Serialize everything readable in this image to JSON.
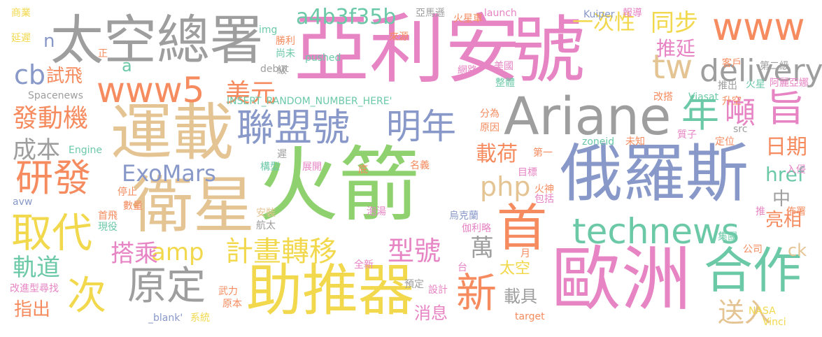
{
  "palette": {
    "green": "#8fd16f",
    "pink": "#e784c4",
    "blue": "#8898c9",
    "gray": "#9e9e9e",
    "tan": "#e5c494",
    "orange": "#f58b5f",
    "yellow": "#f2d84c",
    "teal": "#6cc9a8"
  },
  "words": [
    {
      "text": "火箭",
      "color": "green"
    },
    {
      "text": "亞利安",
      "color": "pink"
    },
    {
      "text": "號",
      "color": "pink"
    },
    {
      "text": "俄羅斯",
      "color": "blue"
    },
    {
      "text": "歐洲",
      "color": "pink"
    },
    {
      "text": "Ariane",
      "color": "gray"
    },
    {
      "text": "運載",
      "color": "tan"
    },
    {
      "text": "衛星",
      "color": "tan"
    },
    {
      "text": "太空總署",
      "color": "gray"
    },
    {
      "text": "助推器",
      "color": "yellow"
    },
    {
      "text": "technews",
      "color": "teal"
    },
    {
      "text": "合作",
      "color": "teal"
    },
    {
      "text": "www5",
      "color": "orange"
    },
    {
      "text": "www",
      "color": "orange"
    },
    {
      "text": "聯盟號",
      "color": "blue"
    },
    {
      "text": "首",
      "color": "orange"
    },
    {
      "text": "取代",
      "color": "yellow"
    },
    {
      "text": "原定",
      "color": "gray"
    },
    {
      "text": "次",
      "color": "yellow"
    },
    {
      "text": "研發",
      "color": "orange"
    },
    {
      "text": "明年",
      "color": "blue"
    },
    {
      "text": "年",
      "color": "teal"
    },
    {
      "text": "噸",
      "color": "pink"
    },
    {
      "text": "旨",
      "color": "pink"
    },
    {
      "text": "tw",
      "color": "tan"
    },
    {
      "text": "delivery",
      "color": "gray"
    },
    {
      "text": "新",
      "color": "orange"
    },
    {
      "text": "a4b3f35b",
      "color": "teal"
    },
    {
      "text": "發動機",
      "color": "orange"
    },
    {
      "text": "計畫轉移",
      "color": "yellow"
    },
    {
      "text": "ExoMars",
      "color": "blue"
    },
    {
      "text": "cb",
      "color": "blue"
    },
    {
      "text": "美元",
      "color": "orange"
    },
    {
      "text": "成本",
      "color": "gray"
    },
    {
      "text": "amp",
      "color": "yellow"
    },
    {
      "text": "php",
      "color": "tan"
    },
    {
      "text": "搭乘",
      "color": "pink"
    },
    {
      "text": "軌道",
      "color": "teal"
    },
    {
      "text": "型號",
      "color": "pink"
    },
    {
      "text": "萬",
      "color": "gray"
    },
    {
      "text": "指出",
      "color": "orange"
    },
    {
      "text": "載荷",
      "color": "orange"
    },
    {
      "text": "同步",
      "color": "yellow"
    },
    {
      "text": "推延",
      "color": "pink"
    },
    {
      "text": "一次性",
      "color": "yellow"
    },
    {
      "text": "日期",
      "color": "orange"
    },
    {
      "text": "href",
      "color": "teal"
    },
    {
      "text": "中",
      "color": "gray"
    },
    {
      "text": "亮相",
      "color": "orange"
    },
    {
      "text": "太空",
      "color": "yellow"
    },
    {
      "text": "載具",
      "color": "gray"
    },
    {
      "text": "消息",
      "color": "pink"
    },
    {
      "text": "送入",
      "color": "tan"
    },
    {
      "text": "試飛",
      "color": "orange"
    },
    {
      "text": "ck",
      "color": "tan"
    },
    {
      "text": "n",
      "color": "blue"
    },
    {
      "text": "a",
      "color": "teal"
    },
    {
      "text": "商業",
      "color": "yellow"
    },
    {
      "text": "延遲",
      "color": "yellow"
    },
    {
      "text": "正",
      "color": "orange"
    },
    {
      "text": "img",
      "color": "teal"
    },
    {
      "text": "亞馬遜",
      "color": "gray"
    },
    {
      "text": "火星車",
      "color": "orange"
    },
    {
      "text": "launch",
      "color": "pink"
    },
    {
      "text": "Kuiper",
      "color": "blue"
    },
    {
      "text": "報導",
      "color": "pink"
    },
    {
      "text": "來源",
      "color": "orange"
    },
    {
      "text": "勝利",
      "color": "orange"
    },
    {
      "text": "尚未",
      "color": "teal"
    },
    {
      "text": "pushed",
      "color": "teal"
    },
    {
      "text": "客戶",
      "color": "orange"
    },
    {
      "text": "第二級",
      "color": "gray"
    },
    {
      "text": "網路",
      "color": "pink"
    },
    {
      "text": "美國",
      "color": "pink"
    },
    {
      "text": "火星",
      "color": "teal"
    },
    {
      "text": "阿麗亞娜",
      "color": "pink"
    },
    {
      "text": "debut",
      "color": "gray"
    },
    {
      "text": "級",
      "color": "gray"
    },
    {
      "text": "整體",
      "color": "teal"
    },
    {
      "text": "推出",
      "color": "gray"
    },
    {
      "text": "Spacenews",
      "color": "gray"
    },
    {
      "text": "改搭",
      "color": "orange"
    },
    {
      "text": "Viasat",
      "color": "teal"
    },
    {
      "text": "INSERT_RANDOM_NUMBER_HERE'",
      "color": "teal"
    },
    {
      "text": "升空",
      "color": "orange"
    },
    {
      "text": "分為",
      "color": "orange"
    },
    {
      "text": "原因",
      "color": "orange"
    },
    {
      "text": "src",
      "color": "gray"
    },
    {
      "text": "質子",
      "color": "pink"
    },
    {
      "text": "Engine",
      "color": "teal"
    },
    {
      "text": "zoneid",
      "color": "teal"
    },
    {
      "text": "定位",
      "color": "orange"
    },
    {
      "text": "遲",
      "color": "gray"
    },
    {
      "text": "未知",
      "color": "orange"
    },
    {
      "text": "第一",
      "color": "orange"
    },
    {
      "text": "構型",
      "color": "teal"
    },
    {
      "text": "展開",
      "color": "pink"
    },
    {
      "text": "底",
      "color": "orange"
    },
    {
      "text": "名義",
      "color": "orange"
    },
    {
      "text": "目標",
      "color": "pink"
    },
    {
      "text": "入侵",
      "color": "pink"
    },
    {
      "text": "停止",
      "color": "orange"
    },
    {
      "text": "火神",
      "color": "orange"
    },
    {
      "text": "包括",
      "color": "pink"
    },
    {
      "text": "avw",
      "color": "blue"
    },
    {
      "text": "首飛",
      "color": "orange"
    },
    {
      "text": "數量",
      "color": "orange"
    },
    {
      "text": "安裝",
      "color": "tan"
    },
    {
      "text": "泡湯",
      "color": "pink"
    },
    {
      "text": "烏克蘭",
      "color": "blue"
    },
    {
      "text": "推",
      "color": "pink"
    },
    {
      "text": "佈署",
      "color": "orange"
    },
    {
      "text": "現役",
      "color": "teal"
    },
    {
      "text": "航太",
      "color": "gray"
    },
    {
      "text": "伽利略",
      "color": "pink"
    },
    {
      "text": "集團",
      "color": "teal"
    },
    {
      "text": "公司",
      "color": "orange"
    },
    {
      "text": "月",
      "color": "orange"
    },
    {
      "text": "全新",
      "color": "pink"
    },
    {
      "text": "台",
      "color": "pink"
    },
    {
      "text": "改進型尋找",
      "color": "pink"
    },
    {
      "text": "武力",
      "color": "orange"
    },
    {
      "text": "預定",
      "color": "gray"
    },
    {
      "text": "設計",
      "color": "pink"
    },
    {
      "text": "原本",
      "color": "orange"
    },
    {
      "text": "NASA",
      "color": "yellow"
    },
    {
      "text": "_blank'",
      "color": "blue"
    },
    {
      "text": "系統",
      "color": "yellow"
    },
    {
      "text": "target",
      "color": "orange"
    },
    {
      "text": "Vinci",
      "color": "yellow"
    }
  ]
}
